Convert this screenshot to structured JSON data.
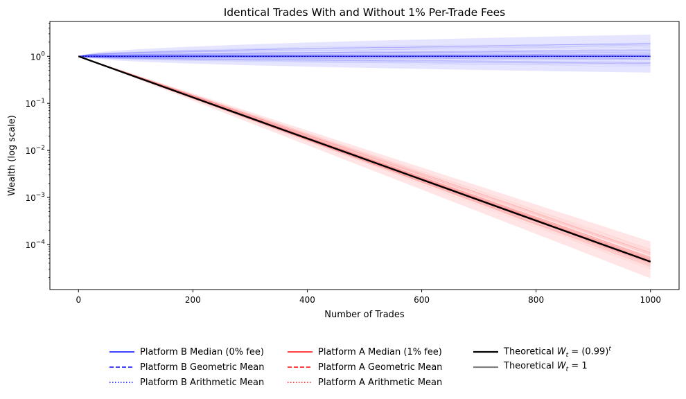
{
  "chart_data": {
    "type": "line",
    "title": "Identical Trades With and Without 1% Per-Trade Fees",
    "xlabel": "Number of Trades",
    "ylabel": "Wealth (log scale)",
    "xlim": [
      -50,
      1050
    ],
    "ylim": [
      1.1e-05,
      5.5
    ],
    "y_scale": "log",
    "x_ticks": [
      0,
      200,
      400,
      600,
      800,
      1000
    ],
    "x_tick_labels": [
      "0",
      "200",
      "400",
      "600",
      "800",
      "1000"
    ],
    "y_ticks": [
      0.0001,
      0.001,
      0.01,
      0.1,
      1
    ],
    "y_tick_labels": [
      {
        "base": "10",
        "exp": "−4"
      },
      {
        "base": "10",
        "exp": "−3"
      },
      {
        "base": "10",
        "exp": "−2"
      },
      {
        "base": "10",
        "exp": "−1"
      },
      {
        "base": "10",
        "exp": "0"
      }
    ],
    "grid": false,
    "legend_placement": "bottom-center",
    "series": [
      {
        "name": "Platform B Median (0% fee)",
        "color": "#0000ff",
        "style": "solid",
        "x": [
          0,
          1000
        ],
        "y": [
          1.0,
          1.0
        ]
      },
      {
        "name": "Platform B Geometric Mean",
        "color": "#0000ff",
        "style": "dashed",
        "x": [
          0,
          1000
        ],
        "y": [
          1.0,
          1.0
        ]
      },
      {
        "name": "Platform B Arithmetic Mean",
        "color": "#0000ff",
        "style": "dotted",
        "x": [
          0,
          1000
        ],
        "y": [
          1.0,
          1.0
        ]
      },
      {
        "name": "Platform A Median (1% fee)",
        "color": "#ff0000",
        "style": "solid",
        "x": [
          0,
          1000
        ],
        "y": [
          1.0,
          4.3e-05
        ]
      },
      {
        "name": "Platform A Geometric Mean",
        "color": "#ff0000",
        "style": "dashed",
        "x": [
          0,
          1000
        ],
        "y": [
          1.0,
          4.3e-05
        ]
      },
      {
        "name": "Platform A Arithmetic Mean",
        "color": "#ff0000",
        "style": "dotted",
        "x": [
          0,
          1000
        ],
        "y": [
          1.0,
          4.3e-05
        ]
      },
      {
        "name": "Theoretical W_t = (0.99)^t",
        "color": "#000000",
        "style": "solid",
        "x": [
          0,
          1000
        ],
        "y": [
          1.0,
          4.3e-05
        ]
      },
      {
        "name": "Theoretical W_t = 1",
        "color": "#808080",
        "style": "solid",
        "x": [
          0,
          1000
        ],
        "y": [
          1.0,
          1.0
        ]
      }
    ],
    "bands": [
      {
        "name": "Platform B simulated paths",
        "color": "#0000ff",
        "x": [
          0,
          1000
        ],
        "y_low": [
          1.0,
          0.45
        ],
        "y_high": [
          1.0,
          2.9
        ]
      },
      {
        "name": "Platform A simulated paths",
        "color": "#ff0000",
        "x": [
          0,
          1000
        ],
        "y_low": [
          1.0,
          1.9e-05
        ],
        "y_high": [
          1.0,
          0.000115
        ]
      }
    ]
  },
  "legend": [
    {
      "label": "Platform B Median (0% fee)",
      "color": "#0000ff",
      "style": "solid",
      "width": 1.6
    },
    {
      "label": "Platform B Geometric Mean",
      "color": "#0000ff",
      "style": "dashed",
      "width": 1.6
    },
    {
      "label": "Platform B Arithmetic Mean",
      "color": "#0000ff",
      "style": "dotted",
      "width": 1.6
    },
    {
      "label": "Platform A Median (1% fee)",
      "color": "#ff0000",
      "style": "solid",
      "width": 1.6
    },
    {
      "label": "Platform A Geometric Mean",
      "color": "#ff0000",
      "style": "dashed",
      "width": 1.6
    },
    {
      "label": "Platform A Arithmetic Mean",
      "color": "#ff0000",
      "style": "dotted",
      "width": 1.6
    },
    {
      "label_prefix": "Theoretical ",
      "label_var": "W",
      "label_sub": "t",
      "label_rest": " = (0.99)",
      "label_sup": "t",
      "color": "#000000",
      "style": "solid",
      "width": 2.2
    },
    {
      "label_prefix": "Theoretical ",
      "label_var": "W",
      "label_sub": "t",
      "label_rest": " = 1",
      "label_sup": "",
      "color": "#808080",
      "style": "solid",
      "width": 2.2
    }
  ]
}
